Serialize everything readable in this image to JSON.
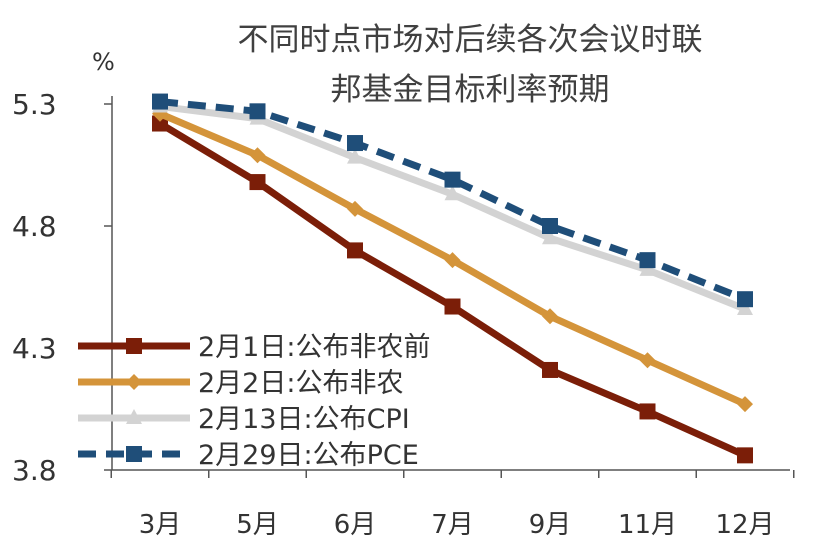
{
  "chart_data": {
    "type": "line",
    "title_lines": [
      "不同时点市场对后续各次会议时联",
      "邦基金目标利率预期"
    ],
    "ylabel": "%",
    "ylim": [
      3.8,
      5.3
    ],
    "yticks": [
      "5.3",
      "4.8",
      "4.3",
      "3.8"
    ],
    "categories": [
      "3月",
      "5月",
      "6月",
      "7月",
      "9月",
      "11月",
      "12月"
    ],
    "grid": false,
    "legend_position": "bottom-left",
    "series": [
      {
        "name": "2月1日:公布非农前",
        "color": "#7B1E08",
        "marker": "square",
        "dash": "solid",
        "values": [
          5.22,
          4.98,
          4.7,
          4.47,
          4.21,
          4.04,
          3.86
        ]
      },
      {
        "name": "2月2日:公布非农",
        "color": "#D4943A",
        "marker": "diamond",
        "dash": "solid",
        "values": [
          5.26,
          5.09,
          4.87,
          4.66,
          4.43,
          4.25,
          4.07
        ]
      },
      {
        "name": "2月13日:公布CPI",
        "color": "#D3D3D3",
        "marker": "triangle",
        "dash": "solid",
        "values": [
          5.29,
          5.24,
          5.08,
          4.93,
          4.75,
          4.62,
          4.46
        ]
      },
      {
        "name": "2月29日:公布PCE",
        "color": "#1F4E79",
        "marker": "square",
        "dash": "dashed",
        "values": [
          5.31,
          5.27,
          5.14,
          4.99,
          4.8,
          4.66,
          4.5
        ]
      }
    ]
  }
}
